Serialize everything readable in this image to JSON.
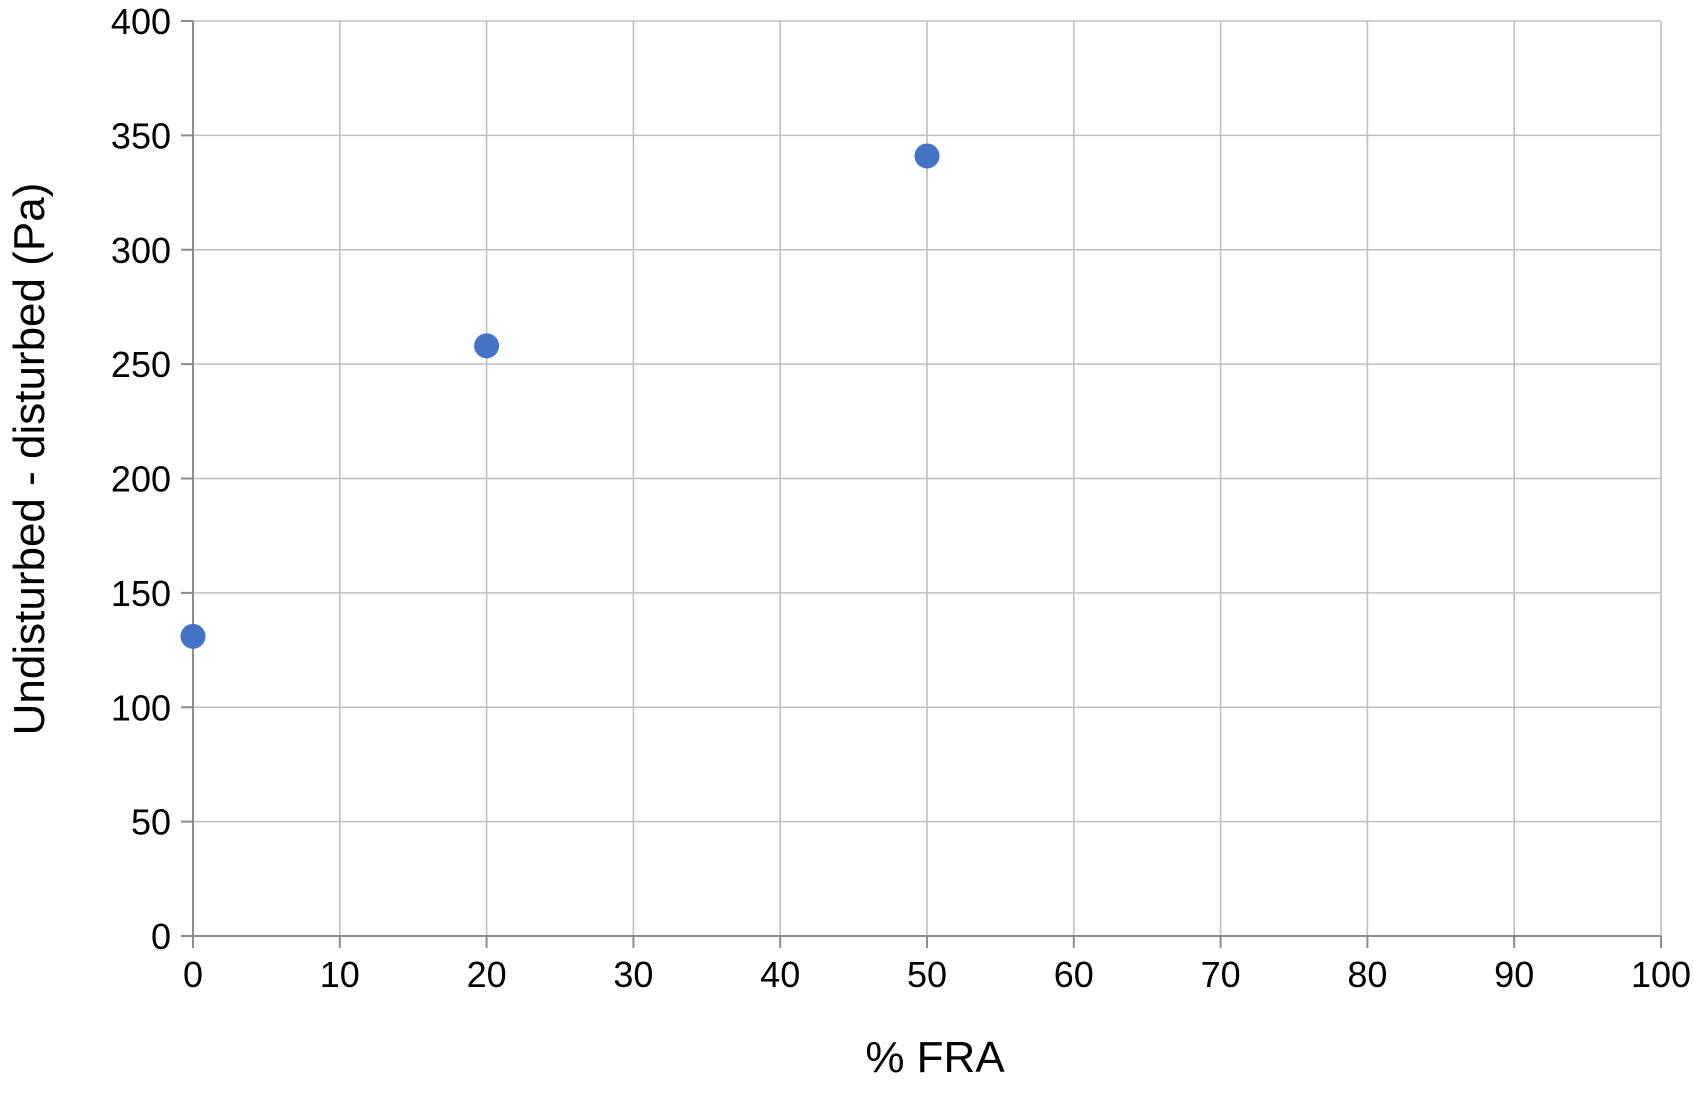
{
  "chart_data": {
    "type": "scatter",
    "title": "",
    "xlabel": "% FRA",
    "ylabel": "Undisturbed - disturbed (Pa)",
    "xlim": [
      0,
      100
    ],
    "ylim": [
      0,
      400
    ],
    "x_ticks": [
      "0",
      "10",
      "20",
      "30",
      "40",
      "50",
      "60",
      "70",
      "80",
      "90",
      "100"
    ],
    "y_ticks": [
      "0",
      "50",
      "100",
      "150",
      "200",
      "250",
      "300",
      "350",
      "400"
    ],
    "grid": true,
    "legend": "none",
    "series": [
      {
        "color": "#4472c4",
        "points": [
          {
            "x": 0,
            "y": 131
          },
          {
            "x": 20,
            "y": 258
          },
          {
            "x": 50,
            "y": 341
          }
        ]
      }
    ]
  }
}
